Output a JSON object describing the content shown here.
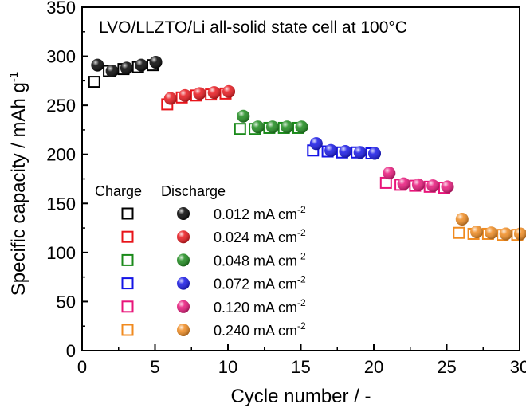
{
  "chart_data": {
    "type": "scatter",
    "annotation": "LVO/LLZTO/Li all-solid state cell at 100°C",
    "xlabel": "Cycle number / -",
    "ylabel": "Specific capacity / mAh g",
    "ylabel_sup": "-1",
    "xlim": [
      0,
      30
    ],
    "ylim": [
      0,
      350
    ],
    "xticks": [
      "0",
      "5",
      "10",
      "15",
      "20",
      "25",
      "30"
    ],
    "yticks": [
      "0",
      "50",
      "100",
      "150",
      "200",
      "250",
      "300",
      "350"
    ],
    "grid": false,
    "legend_header": {
      "charge": "Charge",
      "discharge": "Discharge"
    },
    "series": [
      {
        "name": "0.012 mA cm",
        "name_sup": "-2",
        "color": "#000000",
        "x": [
          1,
          2,
          3,
          4,
          5
        ],
        "charge": [
          274,
          285,
          287,
          289,
          291
        ],
        "discharge": [
          291,
          285,
          288,
          291,
          294
        ]
      },
      {
        "name": "0.024 mA cm",
        "name_sup": "-2",
        "color": "#e8141a",
        "x": [
          6,
          7,
          8,
          9,
          10
        ],
        "charge": [
          251,
          258,
          260,
          261,
          262
        ],
        "discharge": [
          257,
          260,
          262,
          263,
          264
        ]
      },
      {
        "name": "0.048 mA cm",
        "name_sup": "-2",
        "color": "#1a8a1a",
        "x": [
          11,
          12,
          13,
          14,
          15
        ],
        "charge": [
          226,
          226,
          227,
          227,
          227
        ],
        "discharge": [
          239,
          228,
          228,
          228,
          228
        ]
      },
      {
        "name": "0.072 mA cm",
        "name_sup": "-2",
        "color": "#1414e6",
        "x": [
          16,
          17,
          18,
          19,
          20
        ],
        "charge": [
          204,
          203,
          202,
          202,
          201
        ],
        "discharge": [
          211,
          204,
          203,
          202,
          201
        ]
      },
      {
        "name": "0.120 mA cm",
        "name_sup": "-2",
        "color": "#e8157a",
        "x": [
          21,
          22,
          23,
          24,
          25
        ],
        "charge": [
          171,
          169,
          168,
          167,
          166
        ],
        "discharge": [
          181,
          170,
          169,
          168,
          167
        ]
      },
      {
        "name": "0.240 mA cm",
        "name_sup": "-2",
        "color": "#f08a1e",
        "x": [
          26,
          27,
          28,
          29,
          30
        ],
        "charge": [
          120,
          119,
          119,
          118,
          118
        ],
        "discharge": [
          134,
          121,
          120,
          119,
          119
        ]
      }
    ]
  }
}
